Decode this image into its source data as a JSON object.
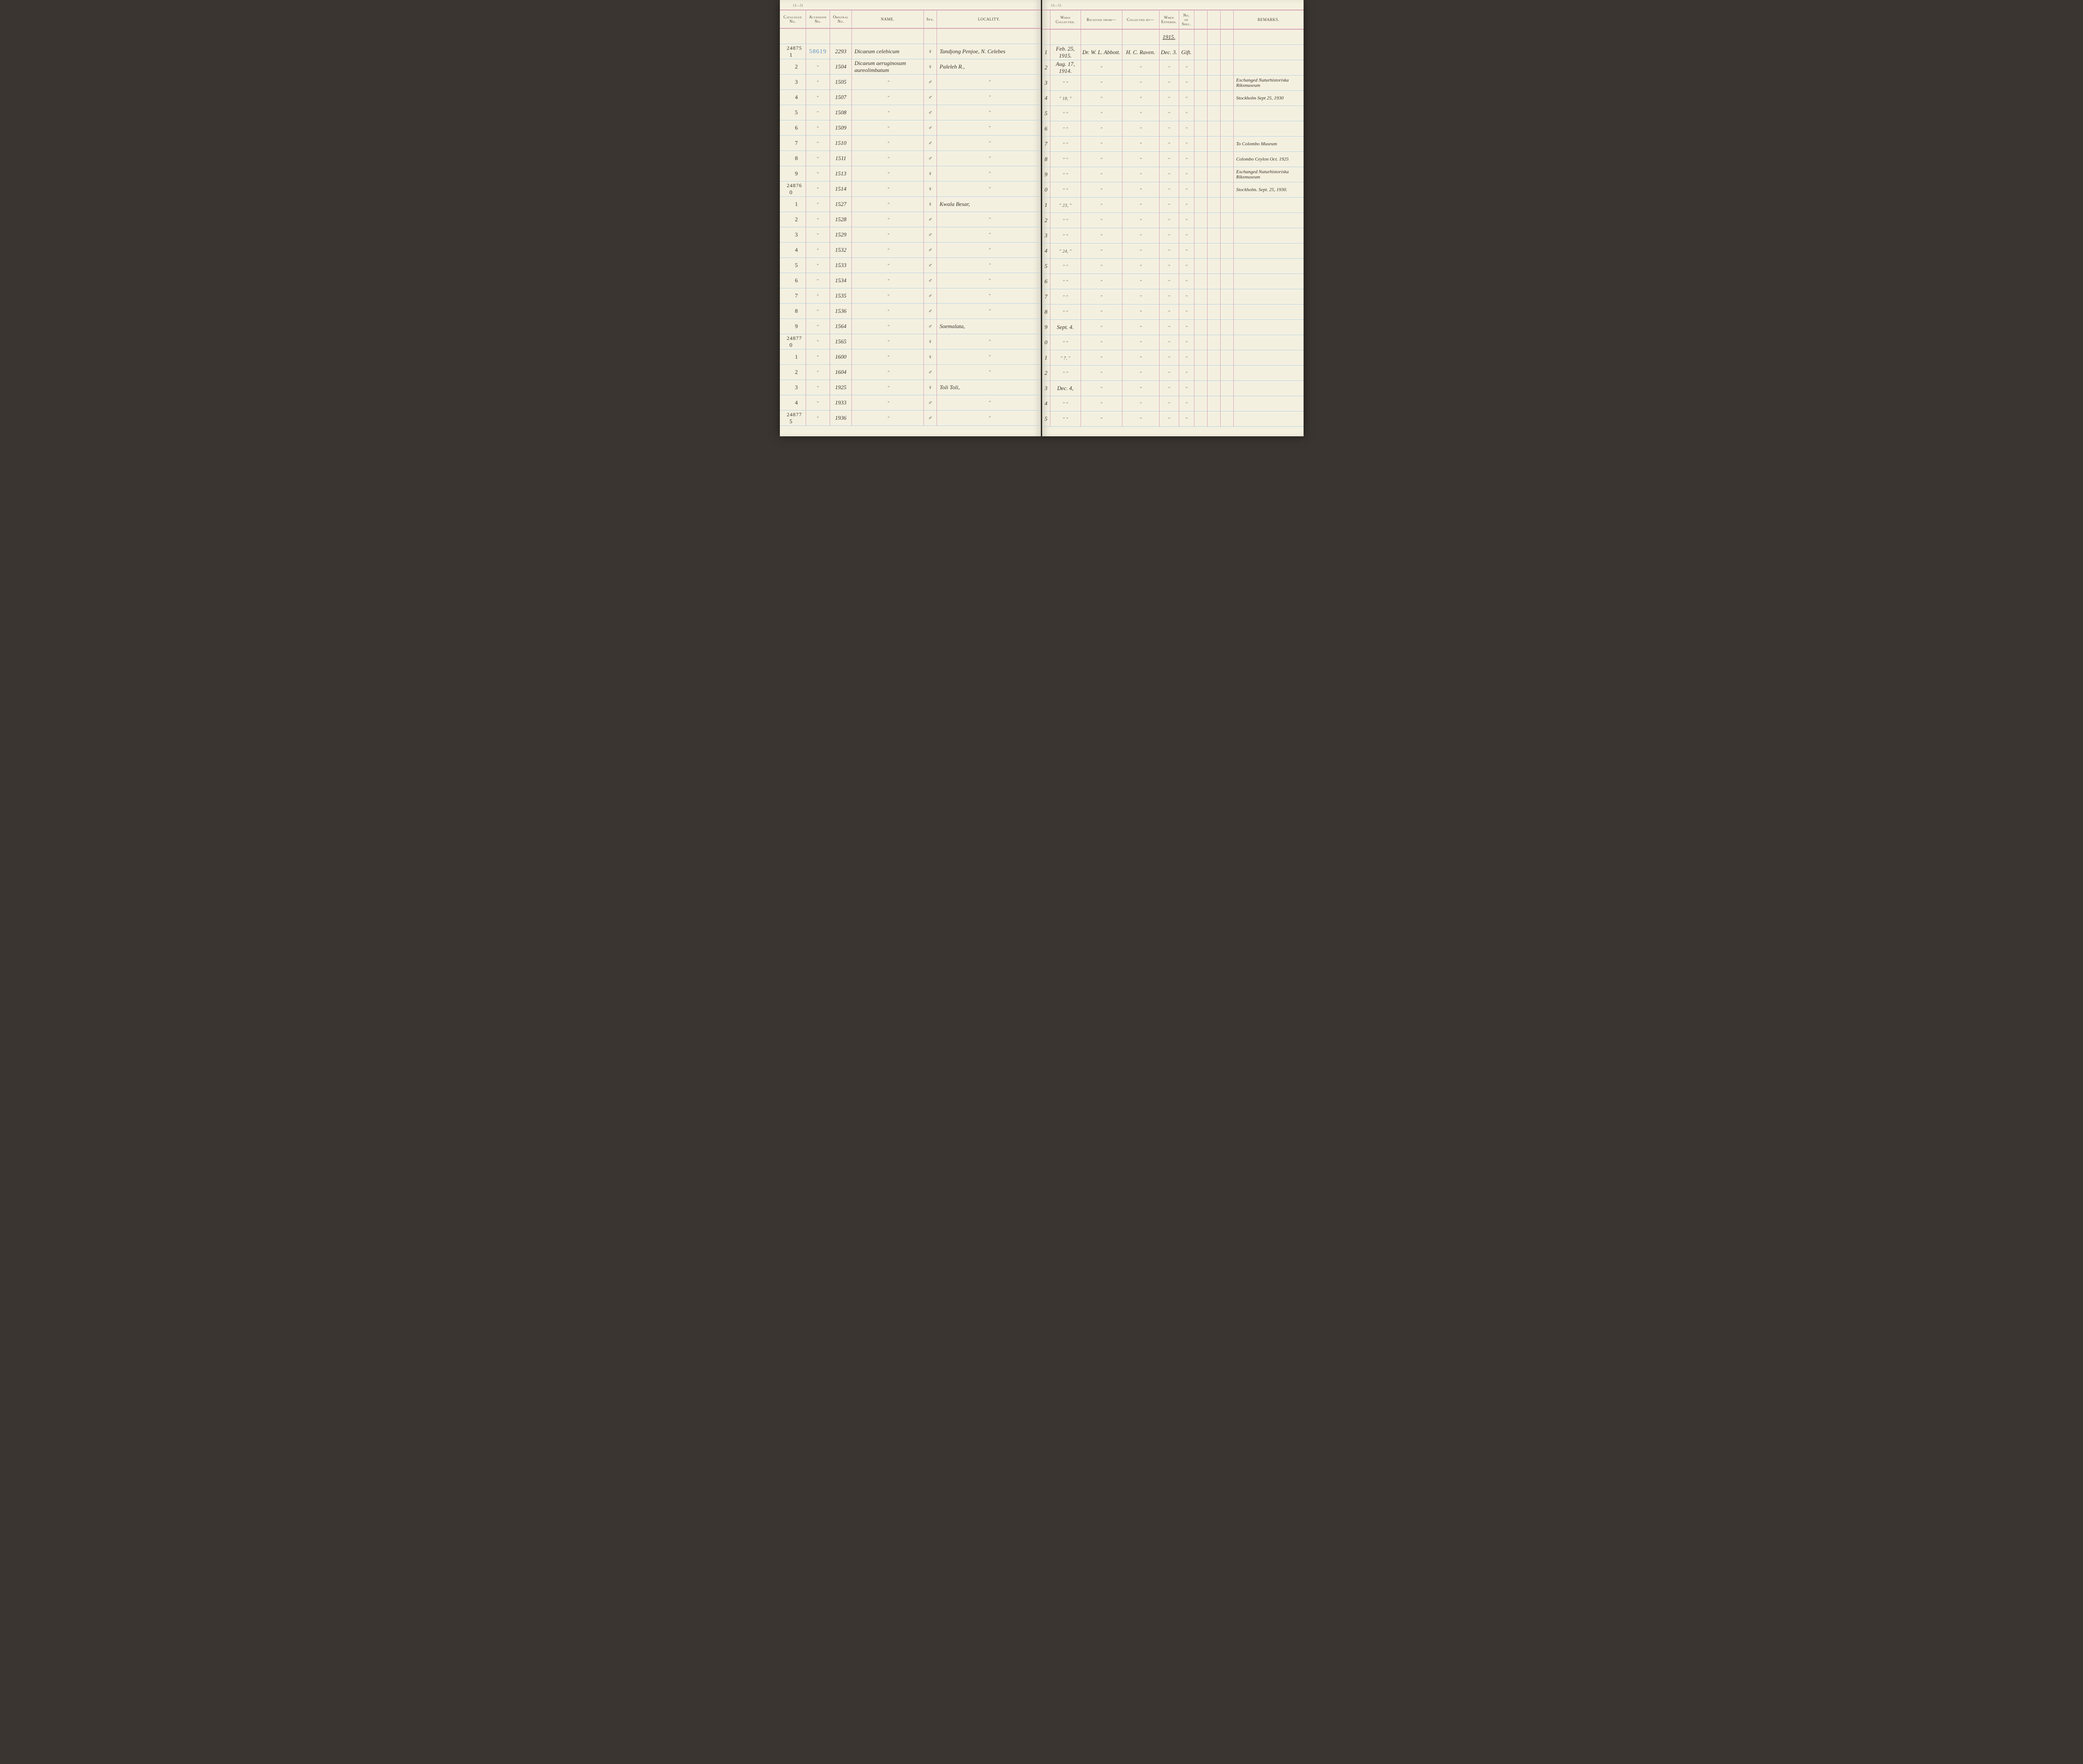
{
  "page_corner_label": "13—51",
  "headers_left": {
    "catalogue": "Catalogue\nNo.",
    "accession": "Accession\nNo.",
    "original": "Original\nNo.",
    "name": "NAME.",
    "sex": "Sex.",
    "locality": "LOCALITY."
  },
  "headers_right": {
    "when_collected": "When\nCollected.",
    "received_from": "Received from—",
    "collected_by": "Collected by—",
    "when_entered": "When\nEntered.",
    "no_spec": "No.\nof\nSpec.",
    "remarks": "REMARKS."
  },
  "year_header": "1915.",
  "rows": [
    {
      "cat_main": "24875",
      "cat_sub": "1",
      "acc": "58619",
      "orig": "2293",
      "name": "Dicaeum celebicum",
      "sex": "♀",
      "loc": "Tandjong Penjoe, N. Celebes",
      "rn": "1",
      "when": "Feb. 25, 1915.",
      "recv": "Dr. W. L. Abbott.",
      "coll": "H. C. Raven.",
      "ent": "Dec. 3.",
      "spec": "Gift.",
      "rem": ""
    },
    {
      "cat_main": "",
      "cat_sub": "2",
      "acc": "\"",
      "orig": "1504",
      "name": "Dicaeum aeruginosum aureolimbatum",
      "sex": "♀",
      "loc": "Paleleh R.,",
      "rn": "2",
      "when": "Aug. 17, 1914.",
      "recv": "\"",
      "coll": "\"",
      "ent": "\"",
      "spec": "\"",
      "rem": ""
    },
    {
      "cat_main": "",
      "cat_sub": "3",
      "acc": "\"",
      "orig": "1505",
      "name": "\"",
      "sex": "♂",
      "loc": "\"",
      "rn": "3",
      "when": "\"  \"",
      "recv": "\"",
      "coll": "\"",
      "ent": "\"",
      "spec": "\"",
      "rem": "Exchanged Naturhistoriska Riksmuseum"
    },
    {
      "cat_main": "",
      "cat_sub": "4",
      "acc": "\"",
      "orig": "1507",
      "name": "\"",
      "sex": "♂",
      "loc": "\"",
      "rn": "4",
      "when": "\" 18, \"",
      "recv": "\"",
      "coll": "\"",
      "ent": "\"",
      "spec": "\"",
      "rem": "Stockholm Sept 25, 1930"
    },
    {
      "cat_main": "",
      "cat_sub": "5",
      "acc": "\"",
      "orig": "1508",
      "name": "\"",
      "sex": "♂",
      "loc": "\"",
      "rn": "5",
      "when": "\"  \"",
      "recv": "\"",
      "coll": "\"",
      "ent": "\"",
      "spec": "\"",
      "rem": ""
    },
    {
      "cat_main": "",
      "cat_sub": "6",
      "acc": "\"",
      "orig": "1509",
      "name": "\"",
      "sex": "♂",
      "loc": "\"",
      "rn": "6",
      "when": "\"  \"",
      "recv": "\"",
      "coll": "\"",
      "ent": "\"",
      "spec": "\"",
      "rem": ""
    },
    {
      "cat_main": "",
      "cat_sub": "7",
      "acc": "\"",
      "orig": "1510",
      "name": "\"",
      "sex": "♂",
      "loc": "\"",
      "rn": "7",
      "when": "\"  \"",
      "recv": "\"",
      "coll": "\"",
      "ent": "\"",
      "spec": "\"",
      "rem": "To Colombo Museum"
    },
    {
      "cat_main": "",
      "cat_sub": "8",
      "acc": "\"",
      "orig": "1511",
      "name": "\"",
      "sex": "♂",
      "loc": "\"",
      "rn": "8",
      "when": "\"  \"",
      "recv": "\"",
      "coll": "\"",
      "ent": "\"",
      "spec": "\"",
      "rem": "Colombo Ceylon Oct. 1925"
    },
    {
      "cat_main": "",
      "cat_sub": "9",
      "acc": "\"",
      "orig": "1513",
      "name": "\"",
      "sex": "♀",
      "loc": "\"",
      "rn": "9",
      "when": "\"  \"",
      "recv": "\"",
      "coll": "\"",
      "ent": "\"",
      "spec": "\"",
      "rem": "Exchanged Naturhistoriska Riksmuseum"
    },
    {
      "cat_main": "24876",
      "cat_sub": "0",
      "acc": "\"",
      "orig": "1514",
      "name": "\"",
      "sex": "♀",
      "loc": "\"",
      "rn": "0",
      "when": "\"  \"",
      "recv": "\"",
      "coll": "\"",
      "ent": "\"",
      "spec": "\"",
      "rem": "Stockholm. Sept. 25, 1930."
    },
    {
      "cat_main": "",
      "cat_sub": "1",
      "acc": "\"",
      "orig": "1527",
      "name": "\"",
      "sex": "♀",
      "loc": "Kwala Besar,",
      "rn": "1",
      "when": "\" 23, \"",
      "recv": "\"",
      "coll": "\"",
      "ent": "\"",
      "spec": "\"",
      "rem": ""
    },
    {
      "cat_main": "",
      "cat_sub": "2",
      "acc": "\"",
      "orig": "1528",
      "name": "\"",
      "sex": "♂",
      "loc": "\"",
      "rn": "2",
      "when": "\"  \"",
      "recv": "\"",
      "coll": "\"",
      "ent": "\"",
      "spec": "\"",
      "rem": ""
    },
    {
      "cat_main": "",
      "cat_sub": "3",
      "acc": "\"",
      "orig": "1529",
      "name": "\"",
      "sex": "♂",
      "loc": "\"",
      "rn": "3",
      "when": "\"  \"",
      "recv": "\"",
      "coll": "\"",
      "ent": "\"",
      "spec": "\"",
      "rem": ""
    },
    {
      "cat_main": "",
      "cat_sub": "4",
      "acc": "\"",
      "orig": "1532",
      "name": "\"",
      "sex": "♂",
      "loc": "\"",
      "rn": "4",
      "when": "\" 24, \"",
      "recv": "\"",
      "coll": "\"",
      "ent": "\"",
      "spec": "\"",
      "rem": ""
    },
    {
      "cat_main": "",
      "cat_sub": "5",
      "acc": "\"",
      "orig": "1533",
      "name": "\"",
      "sex": "♂",
      "loc": "\"",
      "rn": "5",
      "when": "\"  \"",
      "recv": "\"",
      "coll": "\"",
      "ent": "\"",
      "spec": "\"",
      "rem": ""
    },
    {
      "cat_main": "",
      "cat_sub": "6",
      "acc": "\"",
      "orig": "1534",
      "name": "\"",
      "sex": "♂",
      "loc": "\"",
      "rn": "6",
      "when": "\"  \"",
      "recv": "\"",
      "coll": "\"",
      "ent": "\"",
      "spec": "\"",
      "rem": ""
    },
    {
      "cat_main": "",
      "cat_sub": "7",
      "acc": "\"",
      "orig": "1535",
      "name": "\"",
      "sex": "♂",
      "loc": "\"",
      "rn": "7",
      "when": "\"  \"",
      "recv": "\"",
      "coll": "\"",
      "ent": "\"",
      "spec": "\"",
      "rem": ""
    },
    {
      "cat_main": "",
      "cat_sub": "8",
      "acc": "\"",
      "orig": "1536",
      "name": "\"",
      "sex": "♂",
      "loc": "\"",
      "rn": "8",
      "when": "\"  \"",
      "recv": "\"",
      "coll": "\"",
      "ent": "\"",
      "spec": "\"",
      "rem": ""
    },
    {
      "cat_main": "",
      "cat_sub": "9",
      "acc": "\"",
      "orig": "1564",
      "name": "\"",
      "sex": "♂",
      "loc": "Soemalata,",
      "rn": "9",
      "when": "Sept. 4.",
      "recv": "\"",
      "coll": "\"",
      "ent": "\"",
      "spec": "\"",
      "rem": ""
    },
    {
      "cat_main": "24877",
      "cat_sub": "0",
      "acc": "\"",
      "orig": "1565",
      "name": "\"",
      "sex": "♀",
      "loc": "\"",
      "rn": "0",
      "when": "\"  \"",
      "recv": "\"",
      "coll": "\"",
      "ent": "\"",
      "spec": "\"",
      "rem": ""
    },
    {
      "cat_main": "",
      "cat_sub": "1",
      "acc": "\"",
      "orig": "1600",
      "name": "\"",
      "sex": "♀",
      "loc": "\"",
      "rn": "1",
      "when": "\" 7, \"",
      "recv": "\"",
      "coll": "\"",
      "ent": "\"",
      "spec": "\"",
      "rem": ""
    },
    {
      "cat_main": "",
      "cat_sub": "2",
      "acc": "\"",
      "orig": "1604",
      "name": "\"",
      "sex": "♂",
      "loc": "\"",
      "rn": "2",
      "when": "\"  \"",
      "recv": "\"",
      "coll": "\"",
      "ent": "\"",
      "spec": "\"",
      "rem": ""
    },
    {
      "cat_main": "",
      "cat_sub": "3",
      "acc": "\"",
      "orig": "1925",
      "name": "\"",
      "sex": "♀",
      "loc": "Toli Toli,",
      "rn": "3",
      "when": "Dec. 4,",
      "recv": "\"",
      "coll": "\"",
      "ent": "\"",
      "spec": "\"",
      "rem": ""
    },
    {
      "cat_main": "",
      "cat_sub": "4",
      "acc": "\"",
      "orig": "1933",
      "name": "\"",
      "sex": "♂",
      "loc": "\"",
      "rn": "4",
      "when": "\"  \"",
      "recv": "\"",
      "coll": "\"",
      "ent": "\"",
      "spec": "\"",
      "rem": ""
    },
    {
      "cat_main": "24877",
      "cat_sub": "5",
      "acc": "\"",
      "orig": "1936",
      "name": "\"",
      "sex": "♂",
      "loc": "\"",
      "rn": "5",
      "when": "\"  \"",
      "recv": "\"",
      "coll": "\"",
      "ent": "\"",
      "spec": "\"",
      "rem": ""
    }
  ],
  "col_widths_left": {
    "cat": "60",
    "acc": "55",
    "orig": "50",
    "name": "165",
    "sex": "30",
    "loc": "140"
  },
  "col_widths_right": {
    "rn": "18",
    "when": "70",
    "recv": "95",
    "coll": "85",
    "ent": "45",
    "spec": "35",
    "blank1": "30",
    "blank2": "30",
    "blank3": "30",
    "rem": "160"
  },
  "colors": {
    "paper": "#f4f0e0",
    "pink_rule": "#d4a5b5",
    "blue_rule": "#b8d4e0",
    "ink": "#3a3228",
    "accession_blue": "#6090c0"
  }
}
